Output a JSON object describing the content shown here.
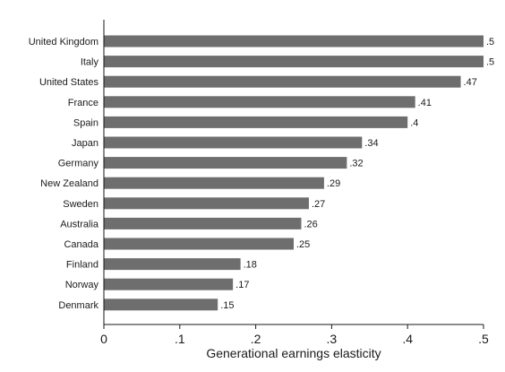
{
  "chart_data": {
    "type": "bar",
    "orientation": "horizontal",
    "categories": [
      "United Kingdom",
      "Italy",
      "United States",
      "France",
      "Spain",
      "Japan",
      "Germany",
      "New Zealand",
      "Sweden",
      "Australia",
      "Canada",
      "Finland",
      "Norway",
      "Denmark"
    ],
    "values": [
      0.5,
      0.5,
      0.47,
      0.41,
      0.4,
      0.34,
      0.32,
      0.29,
      0.27,
      0.26,
      0.25,
      0.18,
      0.17,
      0.15
    ],
    "value_labels": [
      ".5",
      ".5",
      ".47",
      ".41",
      ".4",
      ".34",
      ".32",
      ".29",
      ".27",
      ".26",
      ".25",
      ".18",
      ".17",
      ".15"
    ],
    "xlabel": "Generational earnings elasticity",
    "xlim": [
      0,
      0.5
    ],
    "xticks": [
      0,
      0.1,
      0.2,
      0.3,
      0.4,
      0.5
    ],
    "xtick_labels": [
      "0",
      ".1",
      ".2",
      ".3",
      ".4",
      ".5"
    ],
    "grid": false,
    "bar_color": "#6e6e6e"
  }
}
